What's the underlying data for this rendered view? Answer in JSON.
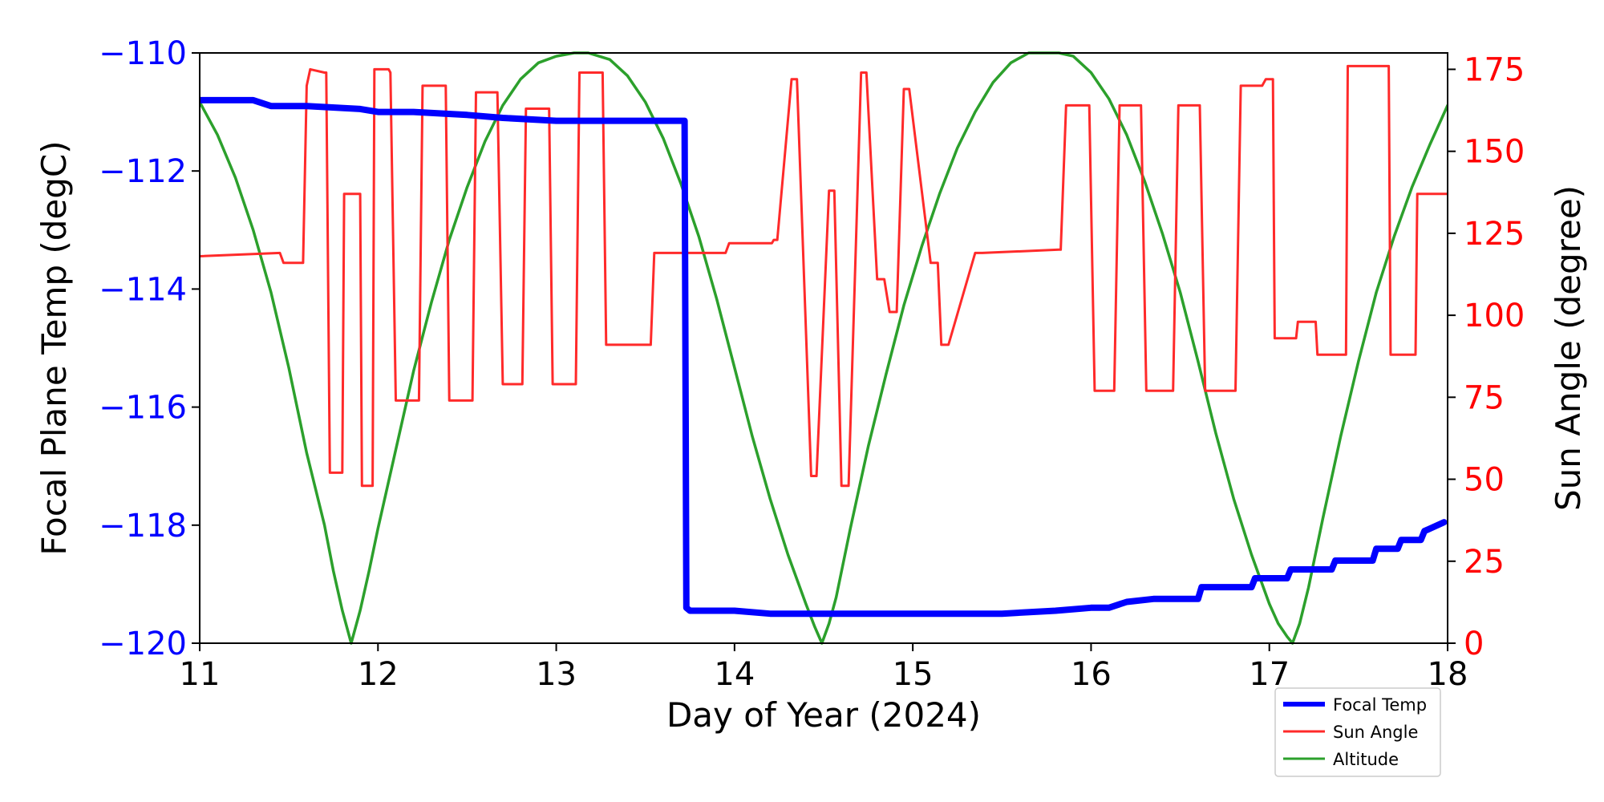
{
  "chart_data": {
    "type": "line",
    "xlabel": "Day of Year (2024)",
    "ylabel_left": "Focal Plane Temp (degC)",
    "ylabel_right": "Sun Angle (degree)",
    "xlim": [
      11,
      18
    ],
    "ylim_left": [
      -120,
      -110
    ],
    "ylim_right": [
      0,
      180
    ],
    "x_ticks": [
      11,
      12,
      13,
      14,
      15,
      16,
      17,
      18
    ],
    "x_tick_labels": [
      "11",
      "12",
      "13",
      "14",
      "15",
      "16",
      "17",
      "18"
    ],
    "y_left_ticks": [
      -110,
      -112,
      -114,
      -116,
      -118,
      -120
    ],
    "y_left_tick_labels": [
      "−110",
      "−112",
      "−114",
      "−116",
      "−118",
      "−120"
    ],
    "y_right_ticks": [
      175,
      150,
      125,
      100,
      75,
      50,
      25,
      0
    ],
    "y_right_tick_labels": [
      "175",
      "150",
      "125",
      "100",
      "75",
      "50",
      "25",
      "0"
    ],
    "grid": false,
    "legend_position": "lower-right",
    "legend": [
      "Focal Temp",
      "Sun Angle",
      "Altitude"
    ],
    "colors": {
      "focal_temp": "#0000ff",
      "sun_angle": "#ff2a2a",
      "altitude": "#2ca02c",
      "left_axis": "#0000ff",
      "right_axis": "#ff0000"
    },
    "series": [
      {
        "name": "Focal Temp",
        "axis": "left",
        "x": [
          11.0,
          11.3,
          11.35,
          11.4,
          11.5,
          11.6,
          11.9,
          12.0,
          12.2,
          12.5,
          12.7,
          13.0,
          13.3,
          13.5,
          13.6,
          13.72,
          13.73,
          13.75,
          14.0,
          14.2,
          14.3,
          14.5,
          15.0,
          15.5,
          15.8,
          16.0,
          16.1,
          16.2,
          16.35,
          16.6,
          16.62,
          16.9,
          16.92,
          17.1,
          17.12,
          17.35,
          17.37,
          17.58,
          17.6,
          17.72,
          17.74,
          17.85,
          17.87,
          17.98
        ],
        "y": [
          -110.8,
          -110.8,
          -110.85,
          -110.9,
          -110.9,
          -110.9,
          -110.95,
          -111.0,
          -111.0,
          -111.05,
          -111.1,
          -111.15,
          -111.15,
          -111.15,
          -111.15,
          -111.15,
          -119.4,
          -119.45,
          -119.45,
          -119.5,
          -119.5,
          -119.5,
          -119.5,
          -119.5,
          -119.45,
          -119.4,
          -119.4,
          -119.3,
          -119.25,
          -119.25,
          -119.05,
          -119.05,
          -118.9,
          -118.9,
          -118.75,
          -118.75,
          -118.6,
          -118.6,
          -118.4,
          -118.4,
          -118.25,
          -118.25,
          -118.1,
          -117.95
        ]
      },
      {
        "name": "Sun Angle",
        "axis": "right",
        "x": [
          11.0,
          11.45,
          11.47,
          11.58,
          11.6,
          11.62,
          11.7,
          11.71,
          11.73,
          11.8,
          11.81,
          11.83,
          11.9,
          11.91,
          11.93,
          11.97,
          11.98,
          12.06,
          12.07,
          12.1,
          12.22,
          12.23,
          12.25,
          12.37,
          12.38,
          12.4,
          12.52,
          12.53,
          12.55,
          12.66,
          12.67,
          12.7,
          12.8,
          12.81,
          12.83,
          12.95,
          12.96,
          12.98,
          13.1,
          13.11,
          13.13,
          13.25,
          13.26,
          13.28,
          13.52,
          13.53,
          13.55,
          13.95,
          13.97,
          14.21,
          14.22,
          14.24,
          14.32,
          14.33,
          14.35,
          14.43,
          14.44,
          14.46,
          14.53,
          14.54,
          14.56,
          14.6,
          14.61,
          14.64,
          14.71,
          14.72,
          14.74,
          14.8,
          14.81,
          14.84,
          14.87,
          14.88,
          14.91,
          14.95,
          14.96,
          14.98,
          15.1,
          15.11,
          15.14,
          15.16,
          15.17,
          15.2,
          15.35,
          15.36,
          15.39,
          15.82,
          15.83,
          15.86,
          15.98,
          15.99,
          16.02,
          16.12,
          16.13,
          16.16,
          16.27,
          16.28,
          16.31,
          16.45,
          16.46,
          16.49,
          16.6,
          16.61,
          16.64,
          16.8,
          16.81,
          16.84,
          16.95,
          16.96,
          16.98,
          17.02,
          17.03,
          17.05,
          17.15,
          17.16,
          17.19,
          17.26,
          17.27,
          17.3,
          17.33,
          17.34,
          17.37,
          17.43,
          17.44,
          17.47,
          17.67,
          17.68,
          17.71,
          17.82,
          17.83,
          17.86,
          17.98,
          17.99,
          18.0
        ],
        "y": [
          118,
          119,
          116,
          116,
          170,
          175,
          174,
          174,
          52,
          52,
          137,
          137,
          137,
          48,
          48,
          48,
          175,
          175,
          174,
          74,
          74,
          74,
          170,
          170,
          170,
          74,
          74,
          74,
          168,
          168,
          168,
          79,
          79,
          79,
          163,
          163,
          163,
          79,
          79,
          79,
          174,
          174,
          174,
          91,
          91,
          91,
          119,
          119,
          122,
          122,
          123,
          123,
          172,
          172,
          172,
          51,
          51,
          51,
          138,
          138,
          138,
          48,
          48,
          48,
          174,
          174,
          174,
          111,
          111,
          111,
          101,
          101,
          101,
          169,
          169,
          169,
          116,
          116,
          116,
          91,
          91,
          91,
          119,
          119,
          119,
          120,
          120,
          164,
          164,
          164,
          77,
          77,
          77,
          164,
          164,
          164,
          77,
          77,
          77,
          164,
          164,
          164,
          77,
          77,
          77,
          170,
          170,
          170,
          172,
          172,
          93,
          93,
          93,
          98,
          98,
          98,
          88,
          88,
          88,
          88,
          88,
          88,
          176,
          176,
          176,
          88,
          88,
          88,
          137,
          137,
          137,
          137,
          137
        ]
      },
      {
        "name": "Altitude",
        "axis": "right",
        "x": [
          11.0,
          11.1,
          11.2,
          11.3,
          11.4,
          11.5,
          11.6,
          11.7,
          11.75,
          11.8,
          11.85,
          11.9,
          11.95,
          12.0,
          12.1,
          12.2,
          12.3,
          12.4,
          12.5,
          12.6,
          12.7,
          12.8,
          12.9,
          13.0,
          13.1,
          13.18,
          13.3,
          13.4,
          13.5,
          13.6,
          13.7,
          13.8,
          13.9,
          14.0,
          14.1,
          14.2,
          14.3,
          14.4,
          14.45,
          14.49,
          14.53,
          14.57,
          14.65,
          14.75,
          14.85,
          14.95,
          15.05,
          15.15,
          15.25,
          15.35,
          15.45,
          15.55,
          15.65,
          15.75,
          15.82,
          15.9,
          16.0,
          16.1,
          16.2,
          16.3,
          16.4,
          16.5,
          16.6,
          16.7,
          16.8,
          16.9,
          17.0,
          17.05,
          17.1,
          17.13,
          17.17,
          17.22,
          17.3,
          17.4,
          17.5,
          17.6,
          17.7,
          17.8,
          17.9,
          18.0
        ],
        "y": [
          165,
          155,
          142,
          126,
          107,
          84,
          58,
          36,
          22,
          10,
          0,
          10,
          22,
          35,
          59,
          83,
          104,
          123,
          139,
          153,
          164,
          172,
          177,
          179,
          180,
          180,
          178,
          173,
          165,
          154,
          140,
          124,
          105,
          84,
          63,
          44,
          27,
          12,
          5,
          0,
          6,
          14,
          35,
          60,
          82,
          103,
          121,
          137,
          151,
          162,
          171,
          177,
          180,
          180,
          180,
          179,
          174,
          166,
          155,
          141,
          125,
          107,
          86,
          64,
          44,
          27,
          12,
          6,
          2,
          0,
          6,
          17,
          38,
          63,
          86,
          107,
          124,
          139,
          152,
          164
        ]
      }
    ]
  }
}
